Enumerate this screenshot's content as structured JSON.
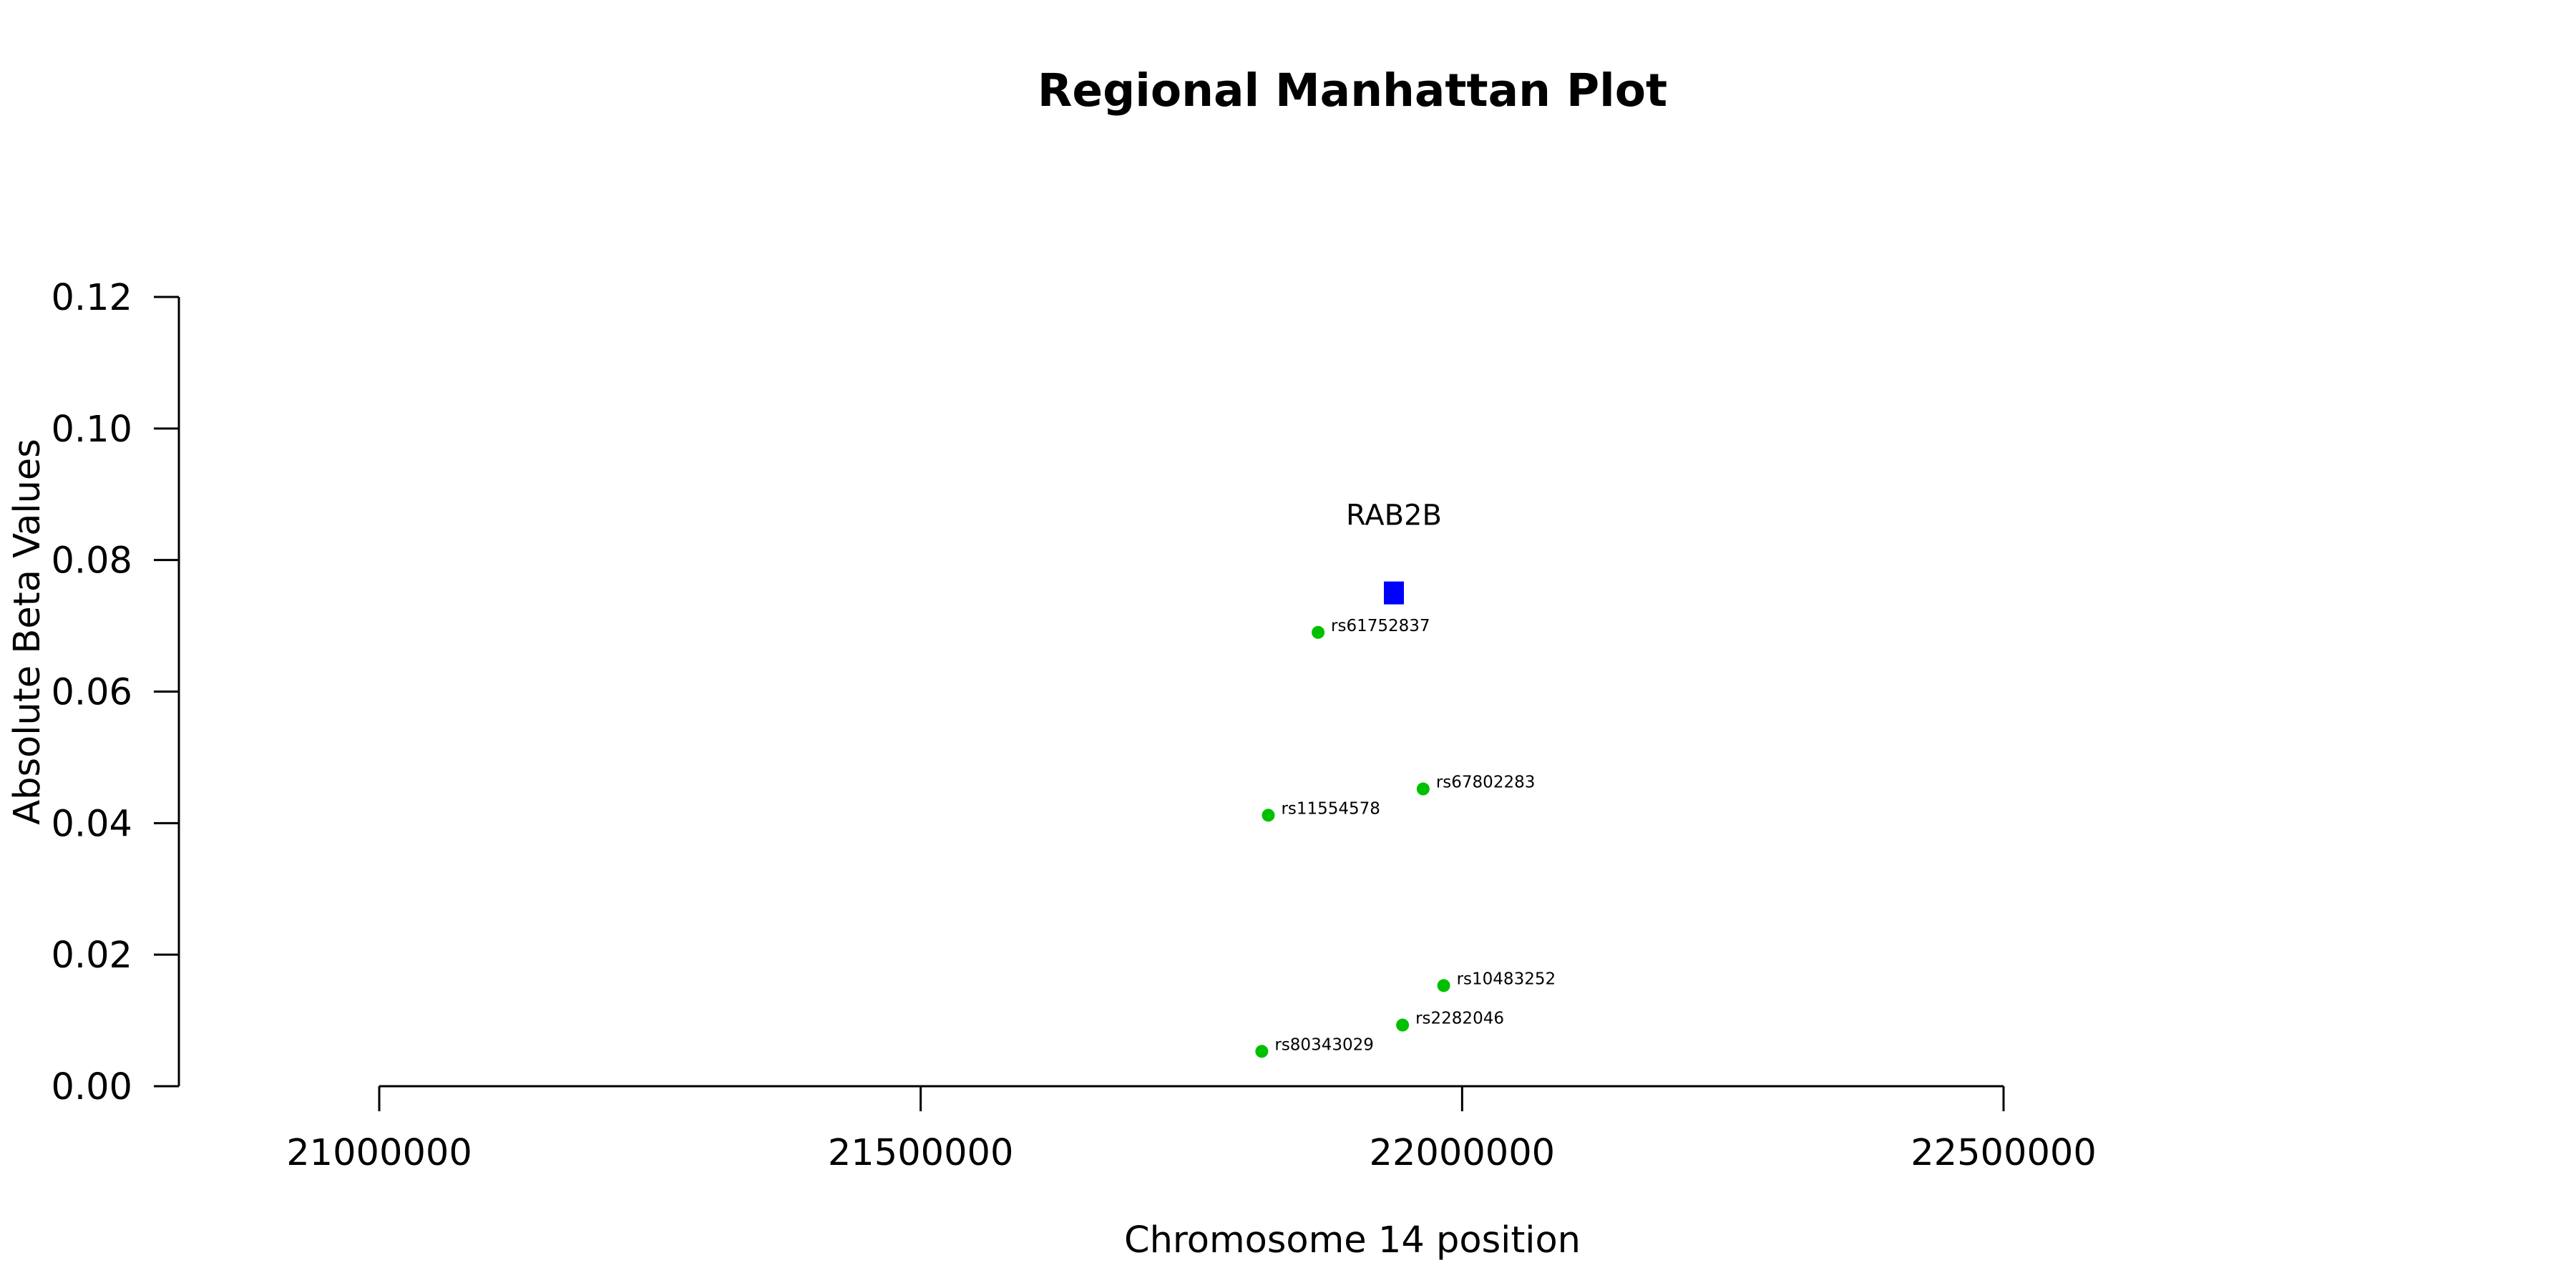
{
  "chart_data": {
    "type": "scatter",
    "title": "Regional Manhattan Plot",
    "xlabel": "Chromosome 14 position",
    "ylabel": "Absolute Beta Values",
    "xlim": [
      21000000,
      22500000
    ],
    "ylim": [
      0,
      0.12
    ],
    "xticks": [
      21000000,
      21500000,
      22000000,
      22500000
    ],
    "xtick_labels": [
      "21000000",
      "21500000",
      "22000000",
      "22500000"
    ],
    "yticks": [
      0,
      0.02,
      0.04,
      0.06,
      0.08,
      0.1,
      0.12
    ],
    "ytick_labels": [
      "0.00",
      "0.02",
      "0.04",
      "0.06",
      "0.08",
      "0.10",
      "0.12"
    ],
    "grid": false,
    "gene": {
      "label": "RAB2B",
      "x": 21937000,
      "y": 0.075,
      "marker": "square",
      "color": "#0000ff"
    },
    "snps": [
      {
        "label": "rs61752837",
        "x": 21867000,
        "y": 0.069
      },
      {
        "label": "rs67802283",
        "x": 21964000,
        "y": 0.0452
      },
      {
        "label": "rs11554578",
        "x": 21821000,
        "y": 0.0412
      },
      {
        "label": "rs10483252",
        "x": 21983000,
        "y": 0.0153
      },
      {
        "label": "rs2282046",
        "x": 21945000,
        "y": 0.0093
      },
      {
        "label": "rs80343029",
        "x": 21815000,
        "y": 0.0053
      }
    ],
    "snp_color": "#00c000"
  }
}
